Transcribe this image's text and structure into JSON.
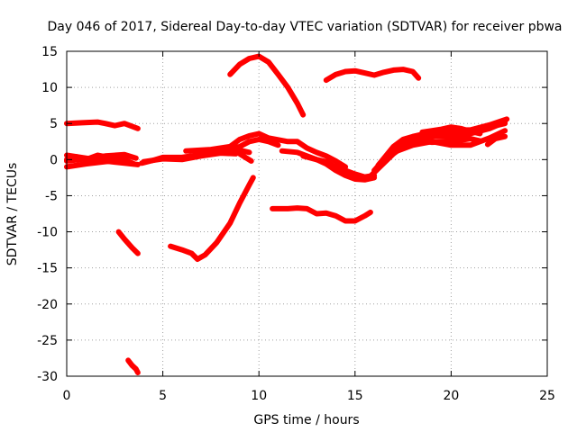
{
  "chart_data": {
    "type": "scatter",
    "title": "Day 046 of 2017, Sidereal Day-to-day VTEC variation (SDTVAR) for receiver pbwa",
    "xlabel": "GPS time / hours",
    "ylabel": "SDTVAR / TECUs",
    "xlim": [
      0,
      25
    ],
    "ylim": [
      -30,
      15
    ],
    "grid": true,
    "x_ticks": [
      0,
      5,
      10,
      15,
      20,
      25
    ],
    "x_tick_labels": [
      "0",
      "5",
      "10",
      "15",
      "20",
      "25"
    ],
    "y_ticks": [
      -30,
      -25,
      -20,
      -15,
      -10,
      -5,
      0,
      5,
      10,
      15
    ],
    "y_tick_labels": [
      "-30",
      "-25",
      "-20",
      "-15",
      "-10",
      "-5",
      "0",
      "5",
      "10",
      "15"
    ],
    "series_color": "#ff0000",
    "series": [
      {
        "name": "s1",
        "points": [
          [
            0,
            5.0
          ],
          [
            0.8,
            5.1
          ],
          [
            1.6,
            5.2
          ],
          [
            2.0,
            5.0
          ],
          [
            2.5,
            4.7
          ],
          [
            3.0,
            5.0
          ],
          [
            3.5,
            4.5
          ],
          [
            3.7,
            4.3
          ]
        ]
      },
      {
        "name": "s2",
        "points": [
          [
            0,
            -1.0
          ],
          [
            1,
            -0.6
          ],
          [
            2,
            -0.3
          ],
          [
            3,
            0.0
          ],
          [
            3.5,
            -0.6
          ]
        ]
      },
      {
        "name": "s3",
        "points": [
          [
            0,
            -0.2
          ],
          [
            1,
            0.1
          ],
          [
            2,
            0.5
          ],
          [
            3,
            0.7
          ],
          [
            3.6,
            0.2
          ]
        ]
      },
      {
        "name": "s4",
        "points": [
          [
            0,
            0.6
          ],
          [
            1,
            0.2
          ],
          [
            2,
            -0.2
          ],
          [
            3,
            -0.5
          ],
          [
            3.7,
            -0.7
          ]
        ]
      },
      {
        "name": "s5",
        "points": [
          [
            0,
            0.0
          ],
          [
            0.5,
            0.4
          ],
          [
            1.0,
            0.0
          ],
          [
            1.6,
            0.6
          ],
          [
            2.2,
            0.3
          ],
          [
            3.0,
            0.5
          ]
        ]
      },
      {
        "name": "s6",
        "points": [
          [
            3.9,
            -0.5
          ],
          [
            4.5,
            -0.1
          ],
          [
            5.0,
            0.3
          ],
          [
            6.0,
            0.3
          ],
          [
            7.0,
            0.7
          ],
          [
            8.0,
            1.3
          ],
          [
            9.0,
            1.3
          ],
          [
            9.5,
            1.0
          ]
        ]
      },
      {
        "name": "s7",
        "points": [
          [
            4.0,
            -0.3
          ],
          [
            5.0,
            0.1
          ],
          [
            6.0,
            0.0
          ],
          [
            7.0,
            0.5
          ],
          [
            8.0,
            0.9
          ],
          [
            8.8,
            0.8
          ]
        ]
      },
      {
        "name": "s8",
        "points": [
          [
            6.2,
            1.2
          ],
          [
            7.5,
            1.4
          ],
          [
            8.5,
            1.8
          ],
          [
            9.0,
            2.8
          ],
          [
            9.5,
            3.3
          ],
          [
            10.0,
            3.6
          ],
          [
            10.5,
            3.0
          ],
          [
            11.5,
            2.5
          ],
          [
            12.0,
            2.5
          ],
          [
            12.5,
            1.6
          ],
          [
            13.0,
            1.0
          ],
          [
            13.5,
            0.5
          ],
          [
            14.0,
            -0.2
          ],
          [
            14.5,
            -1.0
          ]
        ]
      },
      {
        "name": "s9",
        "points": [
          [
            8.0,
            1.0
          ],
          [
            8.5,
            1.5
          ],
          [
            9.0,
            1.8
          ],
          [
            9.5,
            2.5
          ],
          [
            10.0,
            2.8
          ],
          [
            10.5,
            2.5
          ],
          [
            11.0,
            2.0
          ]
        ]
      },
      {
        "name": "s10",
        "points": [
          [
            8.8,
            1.2
          ],
          [
            9.0,
            0.8
          ],
          [
            9.3,
            0.3
          ],
          [
            9.6,
            -0.2
          ]
        ]
      },
      {
        "name": "s11",
        "points": [
          [
            11.2,
            1.2
          ],
          [
            12.0,
            1.0
          ],
          [
            12.5,
            0.5
          ],
          [
            13.0,
            0.0
          ],
          [
            13.5,
            -0.3
          ],
          [
            14.0,
            -1.0
          ],
          [
            14.5,
            -1.5
          ],
          [
            15.0,
            -2.0
          ],
          [
            15.5,
            -2.4
          ],
          [
            16.0,
            -2.2
          ]
        ]
      },
      {
        "name": "s12",
        "points": [
          [
            12.3,
            0.5
          ],
          [
            13.0,
            0.0
          ],
          [
            13.5,
            -0.6
          ],
          [
            14.0,
            -1.5
          ],
          [
            14.5,
            -2.2
          ],
          [
            15.0,
            -2.7
          ],
          [
            15.5,
            -2.8
          ],
          [
            16.0,
            -2.5
          ]
        ]
      },
      {
        "name": "s13",
        "points": [
          [
            15.8,
            -2.3
          ],
          [
            16.3,
            -1.0
          ],
          [
            17.0,
            0.8
          ],
          [
            17.5,
            1.8
          ],
          [
            18.0,
            2.3
          ],
          [
            18.5,
            2.6
          ],
          [
            19.0,
            2.4
          ],
          [
            20.0,
            2.5
          ],
          [
            21.0,
            2.9
          ],
          [
            21.5,
            2.6
          ]
        ]
      },
      {
        "name": "s14",
        "points": [
          [
            16.0,
            -1.5
          ],
          [
            16.5,
            0.0
          ],
          [
            17.0,
            1.3
          ],
          [
            17.5,
            2.4
          ],
          [
            18.0,
            2.9
          ],
          [
            19.0,
            3.2
          ],
          [
            20.0,
            3.2
          ],
          [
            21.0,
            3.6
          ],
          [
            22.0,
            4.3
          ],
          [
            22.8,
            5.2
          ]
        ]
      },
      {
        "name": "s15",
        "points": [
          [
            16.2,
            -0.8
          ],
          [
            17.0,
            1.8
          ],
          [
            17.5,
            2.8
          ],
          [
            18.0,
            3.2
          ],
          [
            19.0,
            3.8
          ],
          [
            20.0,
            4.1
          ],
          [
            21.0,
            4.1
          ],
          [
            22.0,
            4.8
          ],
          [
            22.9,
            5.6
          ]
        ]
      },
      {
        "name": "s16",
        "points": [
          [
            16.5,
            -0.4
          ],
          [
            17.0,
            1.0
          ],
          [
            18.0,
            2.0
          ],
          [
            19.0,
            2.5
          ],
          [
            20.0,
            2.0
          ],
          [
            21.0,
            2.0
          ],
          [
            22.0,
            3.0
          ],
          [
            22.8,
            4.0
          ]
        ]
      },
      {
        "name": "s17",
        "points": [
          [
            18.5,
            3.8
          ],
          [
            19.0,
            4.0
          ],
          [
            19.5,
            4.2
          ],
          [
            20.0,
            4.5
          ],
          [
            20.5,
            4.3
          ],
          [
            21.0,
            3.9
          ],
          [
            21.5,
            3.6
          ]
        ]
      },
      {
        "name": "s18",
        "points": [
          [
            19.0,
            3.2
          ],
          [
            20.0,
            3.6
          ],
          [
            21.0,
            3.8
          ],
          [
            22.0,
            4.5
          ],
          [
            22.8,
            5.0
          ]
        ]
      },
      {
        "name": "s19",
        "points": [
          [
            21.9,
            2.1
          ],
          [
            22.3,
            2.9
          ],
          [
            22.8,
            3.2
          ]
        ]
      },
      {
        "name": "s20",
        "points": [
          [
            8.5,
            11.8
          ],
          [
            9.0,
            13.2
          ],
          [
            9.5,
            14.0
          ],
          [
            10.0,
            14.3
          ],
          [
            10.5,
            13.5
          ],
          [
            11.0,
            11.8
          ],
          [
            11.5,
            10.0
          ],
          [
            12.0,
            7.8
          ],
          [
            12.3,
            6.2
          ]
        ]
      },
      {
        "name": "s21",
        "points": [
          [
            13.5,
            11.0
          ],
          [
            14.0,
            11.8
          ],
          [
            14.5,
            12.2
          ],
          [
            15.0,
            12.3
          ],
          [
            15.5,
            12.0
          ],
          [
            16.0,
            11.7
          ],
          [
            16.5,
            12.1
          ],
          [
            17.0,
            12.4
          ],
          [
            17.5,
            12.5
          ],
          [
            18.0,
            12.2
          ],
          [
            18.3,
            11.3
          ]
        ]
      },
      {
        "name": "s22",
        "points": [
          [
            10.7,
            -6.8
          ],
          [
            11.5,
            -6.8
          ],
          [
            12.0,
            -6.7
          ],
          [
            12.5,
            -6.8
          ],
          [
            13.0,
            -7.5
          ],
          [
            13.5,
            -7.4
          ],
          [
            14.0,
            -7.8
          ],
          [
            14.5,
            -8.5
          ],
          [
            15.0,
            -8.5
          ],
          [
            15.5,
            -7.8
          ],
          [
            15.8,
            -7.3
          ]
        ]
      },
      {
        "name": "s23",
        "points": [
          [
            5.4,
            -12.0
          ],
          [
            6.0,
            -12.5
          ],
          [
            6.5,
            -13.0
          ],
          [
            6.8,
            -13.8
          ],
          [
            7.2,
            -13.2
          ],
          [
            7.8,
            -11.5
          ],
          [
            8.5,
            -8.8
          ],
          [
            9.0,
            -6.0
          ],
          [
            9.5,
            -3.5
          ],
          [
            9.7,
            -2.5
          ]
        ]
      },
      {
        "name": "s24",
        "points": [
          [
            2.7,
            -10.0
          ],
          [
            3.0,
            -11.0
          ],
          [
            3.4,
            -12.2
          ],
          [
            3.7,
            -13.0
          ]
        ]
      },
      {
        "name": "s25",
        "points": [
          [
            3.2,
            -27.8
          ],
          [
            3.4,
            -28.5
          ],
          [
            3.6,
            -29.0
          ],
          [
            3.7,
            -29.5
          ]
        ]
      }
    ]
  }
}
